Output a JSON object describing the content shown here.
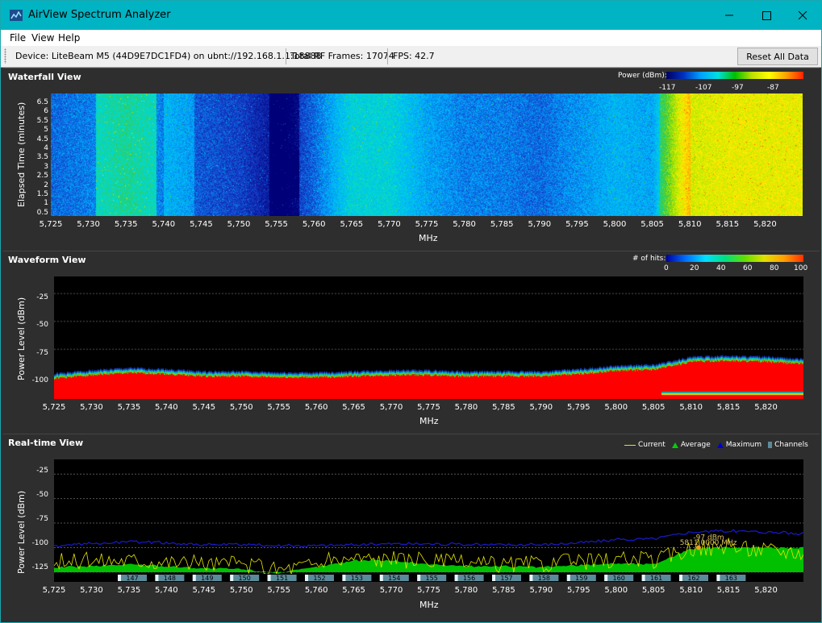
{
  "window": {
    "title": "AirView Spectrum Analyzer"
  },
  "menu": {
    "items": [
      "File",
      "View",
      "Help"
    ]
  },
  "status": {
    "device": "Device: LiteBeam M5 (44D9E7DC1FD4) on ubnt://192.168.1.1:18888",
    "frames": "Total RF Frames: 17074",
    "fps": "FPS: 42.7",
    "reset_label": "Reset All Data"
  },
  "waterfall": {
    "title": "Waterfall View",
    "legend_title": "Power (dBm):",
    "legend_ticks": [
      "-117",
      "-107",
      "-97",
      "-87"
    ],
    "ylabel": "Elapsed Time (minutes)",
    "yticks": [
      "6.5",
      "6",
      "5.5",
      "5",
      "4.5",
      "4",
      "3.5",
      "3",
      "2.5",
      "2",
      "1.5",
      "1",
      "0.5"
    ],
    "xlabel": "MHz"
  },
  "waveform": {
    "title": "Waveform View",
    "legend_title": "# of hits:",
    "legend_ticks": [
      "0",
      "20",
      "40",
      "60",
      "80",
      "100"
    ],
    "ylabel": "Power Level (dBm)",
    "yticks": [
      "-25",
      "-50",
      "-75",
      "-100"
    ],
    "xlabel": "MHz"
  },
  "realtime": {
    "title": "Real-time View",
    "legend": [
      {
        "label": "Current",
        "color": "#e6e600"
      },
      {
        "label": "Average",
        "color": "#00d000"
      },
      {
        "label": "Maximum",
        "color": "#0000d0"
      },
      {
        "label": "Channels",
        "color": "#5b8b9a"
      }
    ],
    "ylabel": "Power Level (dBm)",
    "yticks": [
      "-25",
      "-50",
      "-75",
      "-100",
      "-125"
    ],
    "xlabel": "MHz",
    "channels": [
      "147",
      "148",
      "149",
      "150",
      "151",
      "152",
      "153",
      "154",
      "155",
      "156",
      "157",
      "158",
      "159",
      "160",
      "161",
      "162",
      "163"
    ],
    "marker_dbm": "-97 dBm",
    "marker_mhz": "5811.0000 MHz"
  },
  "x_ticks": [
    "5,725",
    "5,730",
    "5,735",
    "5,740",
    "5,745",
    "5,750",
    "5,755",
    "5,760",
    "5,765",
    "5,770",
    "5,775",
    "5,780",
    "5,785",
    "5,790",
    "5,795",
    "5,800",
    "5,805",
    "5,810",
    "5,815",
    "5,820"
  ],
  "chart_data": {
    "type": "area",
    "x_range_mhz": [
      5725,
      5825
    ],
    "y_range_dbm": [
      -135,
      -10
    ],
    "series": [
      {
        "name": "Current",
        "x": [
          5725,
          5730,
          5735,
          5740,
          5745,
          5750,
          5755,
          5760,
          5765,
          5770,
          5775,
          5780,
          5785,
          5790,
          5795,
          5800,
          5805,
          5810,
          5815,
          5820,
          5825
        ],
        "values": [
          -115,
          -113,
          -112,
          -114,
          -116,
          -117,
          -122,
          -116,
          -110,
          -112,
          -113,
          -116,
          -117,
          -116,
          -114,
          -112,
          -113,
          -100,
          -99,
          -102,
          -104
        ]
      },
      {
        "name": "Average",
        "x": [
          5725,
          5730,
          5735,
          5740,
          5745,
          5750,
          5755,
          5760,
          5765,
          5770,
          5775,
          5780,
          5785,
          5790,
          5795,
          5800,
          5805,
          5810,
          5815,
          5820,
          5825
        ],
        "values": [
          -120,
          -119,
          -117,
          -119,
          -121,
          -122,
          -126,
          -120,
          -113,
          -113,
          -117,
          -119,
          -119,
          -120,
          -118,
          -116,
          -117,
          -101,
          -100,
          -100,
          -100
        ]
      },
      {
        "name": "Maximum",
        "x": [
          5725,
          5730,
          5735,
          5740,
          5745,
          5750,
          5755,
          5760,
          5765,
          5770,
          5775,
          5780,
          5785,
          5790,
          5795,
          5800,
          5805,
          5810,
          5815,
          5820,
          5825
        ],
        "values": [
          -99,
          -96,
          -94,
          -95,
          -97,
          -97,
          -98,
          -98,
          -97,
          -96,
          -96,
          -97,
          -97,
          -97,
          -95,
          -92,
          -91,
          -84,
          -83,
          -84,
          -86
        ]
      }
    ],
    "xlabel": "MHz",
    "ylabel": "Power Level (dBm)"
  }
}
